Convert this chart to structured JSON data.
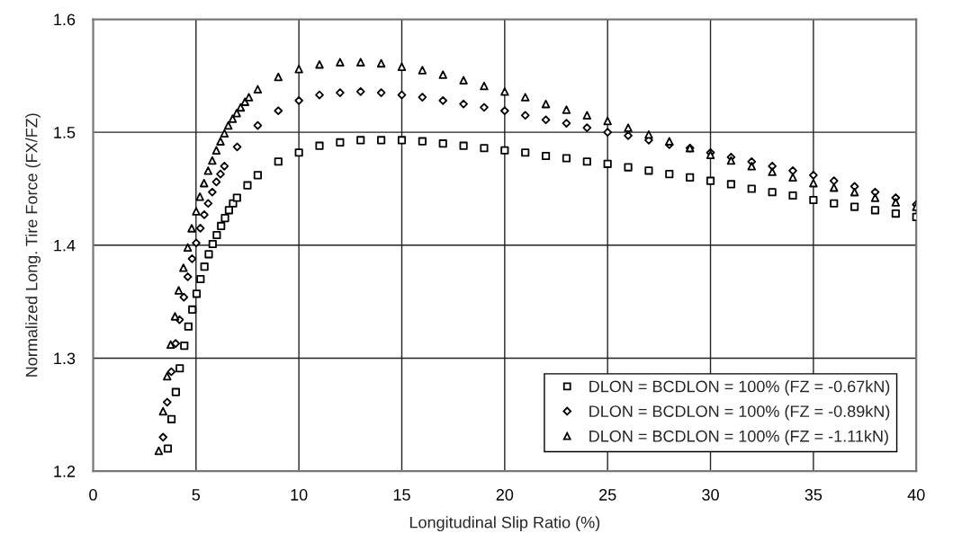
{
  "chart_data": {
    "type": "scatter",
    "xlabel": "Longitudinal Slip Ratio (%)",
    "ylabel": "Normalized Long. Tire Force (FX/FZ)",
    "xlim": [
      0,
      40
    ],
    "xticks": [
      0,
      5,
      10,
      15,
      20,
      25,
      30,
      35,
      40
    ],
    "ylim": [
      1.2,
      1.6
    ],
    "yticks": [
      1.2,
      1.3,
      1.4,
      1.5,
      1.6
    ],
    "grid": true,
    "legend": "bottom right",
    "series": [
      {
        "name": "DLON = BCDLON = 100% (FZ = -0.67kN)",
        "color": "#000000",
        "marker": "square",
        "x": [
          3.63,
          3.81,
          4.02,
          4.21,
          4.43,
          4.63,
          4.82,
          5.03,
          5.22,
          5.41,
          5.62,
          5.81,
          6.01,
          6.22,
          6.41,
          6.6,
          6.8,
          6.99,
          7.5,
          8,
          9,
          10,
          11,
          12,
          13,
          14,
          15,
          16,
          17,
          18,
          19,
          20,
          21,
          22,
          23,
          24,
          25,
          26,
          27,
          28,
          29,
          30,
          31,
          32,
          33,
          34,
          35,
          36,
          37,
          38,
          39,
          40
        ],
        "values": [
          1.22,
          1.246,
          1.27,
          1.291,
          1.311,
          1.328,
          1.343,
          1.357,
          1.37,
          1.381,
          1.392,
          1.401,
          1.409,
          1.417,
          1.424,
          1.431,
          1.437,
          1.442,
          1.453,
          1.462,
          1.474,
          1.482,
          1.488,
          1.491,
          1.493,
          1.493,
          1.493,
          1.492,
          1.49,
          1.488,
          1.486,
          1.484,
          1.482,
          1.479,
          1.477,
          1.474,
          1.472,
          1.469,
          1.466,
          1.463,
          1.46,
          1.457,
          1.454,
          1.45,
          1.447,
          1.444,
          1.44,
          1.437,
          1.434,
          1.431,
          1.428,
          1.425
        ]
      },
      {
        "name": "DLON = BCDLON = 100% (FZ = -0.89kN)",
        "color": "#000000",
        "marker": "diamond",
        "x": [
          3.4,
          3.6,
          3.8,
          4.01,
          4.2,
          4.41,
          4.6,
          4.81,
          5.01,
          5.21,
          5.4,
          5.59,
          5.79,
          5.99,
          6.19,
          6.38,
          7,
          8,
          9,
          10,
          11,
          12,
          13,
          14,
          15,
          16,
          17,
          18,
          19,
          20,
          21,
          22,
          23,
          24,
          25,
          26,
          27,
          28,
          29,
          30,
          31,
          32,
          33,
          34,
          35,
          36,
          37,
          38,
          39,
          40
        ],
        "values": [
          1.23,
          1.261,
          1.288,
          1.313,
          1.334,
          1.354,
          1.372,
          1.388,
          1.402,
          1.415,
          1.427,
          1.437,
          1.447,
          1.456,
          1.463,
          1.47,
          1.487,
          1.506,
          1.519,
          1.528,
          1.533,
          1.535,
          1.536,
          1.535,
          1.533,
          1.531,
          1.528,
          1.525,
          1.522,
          1.519,
          1.515,
          1.511,
          1.508,
          1.504,
          1.5,
          1.497,
          1.493,
          1.489,
          1.486,
          1.482,
          1.478,
          1.474,
          1.47,
          1.466,
          1.462,
          1.457,
          1.452,
          1.447,
          1.442,
          1.436
        ]
      },
      {
        "name": "DLON = BCDLON = 100% (FZ = -1.11kN)",
        "color": "#000000",
        "marker": "triangle",
        "x": [
          3.19,
          3.4,
          3.6,
          3.77,
          3.98,
          4.16,
          4.39,
          4.6,
          4.79,
          5.01,
          5.19,
          5.39,
          5.59,
          5.79,
          5.99,
          6.19,
          6.38,
          6.57,
          6.78,
          6.98,
          7.17,
          7.38,
          7.57,
          8,
          9,
          10,
          11,
          12,
          13,
          14,
          15,
          16,
          17,
          18,
          19,
          20,
          21,
          22,
          23,
          24,
          25,
          26,
          27,
          28,
          29,
          30,
          31,
          32,
          33,
          34,
          35,
          36,
          37,
          38,
          39,
          40
        ],
        "values": [
          1.218,
          1.253,
          1.284,
          1.312,
          1.337,
          1.36,
          1.38,
          1.398,
          1.415,
          1.43,
          1.443,
          1.455,
          1.466,
          1.475,
          1.484,
          1.492,
          1.499,
          1.506,
          1.512,
          1.517,
          1.522,
          1.527,
          1.531,
          1.538,
          1.549,
          1.556,
          1.56,
          1.562,
          1.562,
          1.561,
          1.558,
          1.555,
          1.551,
          1.546,
          1.541,
          1.536,
          1.531,
          1.525,
          1.52,
          1.515,
          1.51,
          1.504,
          1.498,
          1.492,
          1.486,
          1.48,
          1.475,
          1.47,
          1.465,
          1.46,
          1.455,
          1.451,
          1.447,
          1.442,
          1.438,
          1.434
        ]
      }
    ]
  }
}
